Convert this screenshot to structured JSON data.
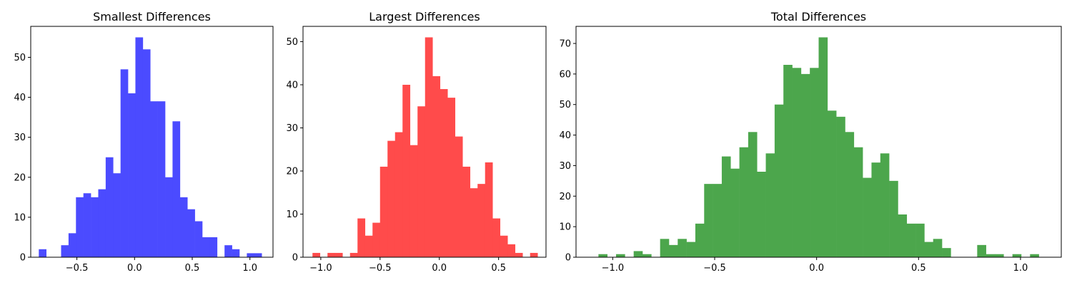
{
  "chart_data": [
    {
      "type": "bar",
      "title": "Smallest Differences",
      "xlabel": "",
      "ylabel": "",
      "color": "#4b4bff",
      "grid": false,
      "xlim": [
        -0.9,
        1.2
      ],
      "ylim": [
        0,
        57.75
      ],
      "xticks": [
        -0.5,
        0.0,
        0.5,
        1.0
      ],
      "xtick_labels": [
        "−0.5",
        "0.0",
        "0.5",
        "1.0"
      ],
      "yticks": [
        0,
        10,
        20,
        30,
        40,
        50
      ],
      "ytick_labels": [
        "0",
        "10",
        "20",
        "30",
        "40",
        "50"
      ],
      "bin_start": -0.83,
      "bin_width": 0.0644,
      "values": [
        2,
        0,
        0,
        3,
        6,
        15,
        16,
        15,
        17,
        25,
        21,
        47,
        41,
        55,
        52,
        39,
        39,
        20,
        34,
        15,
        12,
        9,
        5,
        5,
        0,
        3,
        2,
        0,
        1,
        1
      ]
    },
    {
      "type": "bar",
      "title": "Largest Differences",
      "xlabel": "",
      "ylabel": "",
      "color": "#ff4b4b",
      "grid": false,
      "xlim": [
        -1.15,
        0.9
      ],
      "ylim": [
        0,
        53.55
      ],
      "xticks": [
        -1.0,
        -0.5,
        0.0,
        0.5
      ],
      "xtick_labels": [
        "−1.0",
        "−0.5",
        "0.0",
        "0.5"
      ],
      "yticks": [
        0,
        10,
        20,
        30,
        40,
        50
      ],
      "ytick_labels": [
        "0",
        "10",
        "20",
        "30",
        "40",
        "50"
      ],
      "bin_start": -1.07,
      "bin_width": 0.0633,
      "values": [
        1,
        0,
        1,
        1,
        0,
        1,
        9,
        5,
        8,
        21,
        27,
        29,
        40,
        26,
        35,
        51,
        42,
        39,
        37,
        28,
        21,
        16,
        17,
        22,
        9,
        5,
        3,
        1,
        0,
        1
      ]
    },
    {
      "type": "bar",
      "title": "Total Differences",
      "xlabel": "",
      "ylabel": "",
      "color": "#4ca64c",
      "grid": false,
      "xlim": [
        -1.18,
        1.2
      ],
      "ylim": [
        0,
        75.6
      ],
      "xticks": [
        -1.0,
        -0.5,
        0.0,
        0.5,
        1.0
      ],
      "xtick_labels": [
        "−1.0",
        "−0.5",
        "0.0",
        "0.5",
        "1.0"
      ],
      "yticks": [
        0,
        10,
        20,
        30,
        40,
        50,
        60,
        70
      ],
      "ytick_labels": [
        "0",
        "10",
        "20",
        "30",
        "40",
        "50",
        "60",
        "70"
      ],
      "bin_start": -1.07,
      "bin_width": 0.0432,
      "values": [
        1,
        0,
        1,
        0,
        2,
        1,
        0,
        6,
        4,
        6,
        5,
        11,
        24,
        24,
        33,
        29,
        36,
        41,
        28,
        34,
        50,
        63,
        62,
        60,
        62,
        72,
        48,
        46,
        41,
        36,
        26,
        31,
        34,
        25,
        14,
        11,
        11,
        5,
        6,
        3,
        0,
        0,
        0,
        4,
        1,
        1,
        0,
        1,
        0,
        1
      ]
    }
  ]
}
